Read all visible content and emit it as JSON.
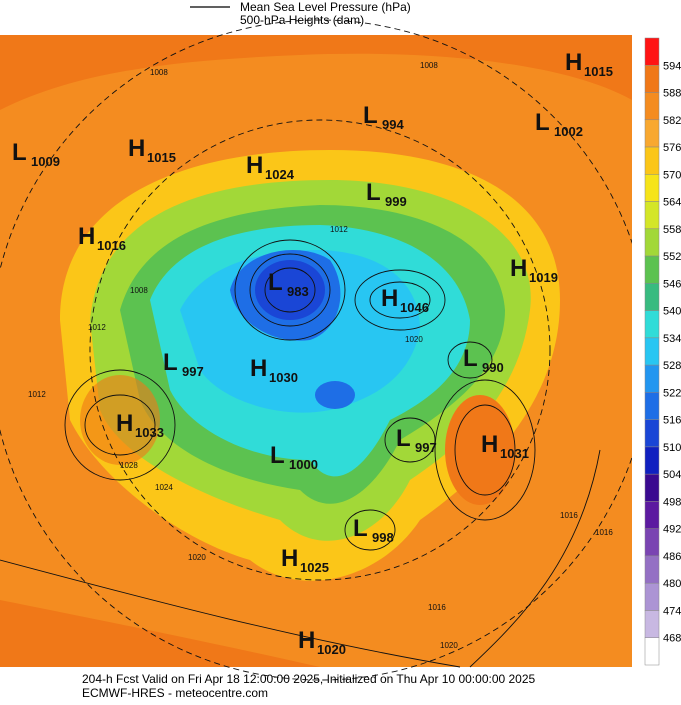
{
  "header": {
    "legend_line1": "Mean Sea Level Pressure (hPa)",
    "legend_line2": "500-hPa Heights (dam)"
  },
  "colorbar": {
    "ticks": [
      594,
      588,
      582,
      576,
      570,
      564,
      558,
      552,
      546,
      540,
      534,
      528,
      522,
      516,
      510,
      504,
      498,
      492,
      486,
      480,
      474,
      468
    ],
    "colors": [
      "#ff1414",
      "#f07818",
      "#f48c20",
      "#f8a830",
      "#fbc618",
      "#f6e41a",
      "#d4e628",
      "#a2d838",
      "#5cc250",
      "#38bb80",
      "#30dcd8",
      "#28c6f2",
      "#2296f0",
      "#1e6ee6",
      "#1a46d6",
      "#1020c0",
      "#3a0a90",
      "#5c1aa0",
      "#7a44b2",
      "#9470c4",
      "#ac94d4",
      "#c8b8e2",
      "#ffffff"
    ]
  },
  "pressure_centers": [
    {
      "type": "H",
      "value": "1015"
    },
    {
      "type": "L",
      "value": "994"
    },
    {
      "type": "L",
      "value": "1002"
    },
    {
      "type": "L",
      "value": "1009"
    },
    {
      "type": "H",
      "value": "1015"
    },
    {
      "type": "H",
      "value": "1024"
    },
    {
      "type": "L",
      "value": "999"
    },
    {
      "type": "H",
      "value": "1016"
    },
    {
      "type": "H",
      "value": "1019"
    },
    {
      "type": "L",
      "value": "983"
    },
    {
      "type": "H",
      "value": "1046"
    },
    {
      "type": "L",
      "value": "997"
    },
    {
      "type": "H",
      "value": "1030"
    },
    {
      "type": "L",
      "value": "990"
    },
    {
      "type": "H",
      "value": "1033"
    },
    {
      "type": "L",
      "value": "997"
    },
    {
      "type": "H",
      "value": "1031"
    },
    {
      "type": "L",
      "value": "1000"
    },
    {
      "type": "L",
      "value": "998"
    },
    {
      "type": "H",
      "value": "1025"
    },
    {
      "type": "H",
      "value": "1020"
    }
  ],
  "contour_labels": [
    "1008",
    "1008",
    "1012",
    "1008",
    "1012",
    "1028",
    "1024",
    "1020",
    "1020",
    "1016",
    "1016",
    "1012",
    "1016",
    "1020"
  ],
  "footer": {
    "line1": "204-h Fcst Valid on Fri Apr 18 12:00:00 2025, Initialized on Thu Apr 10 00:00:00 2025",
    "line2": "ECMWF-HRES  - meteocentre.com"
  }
}
